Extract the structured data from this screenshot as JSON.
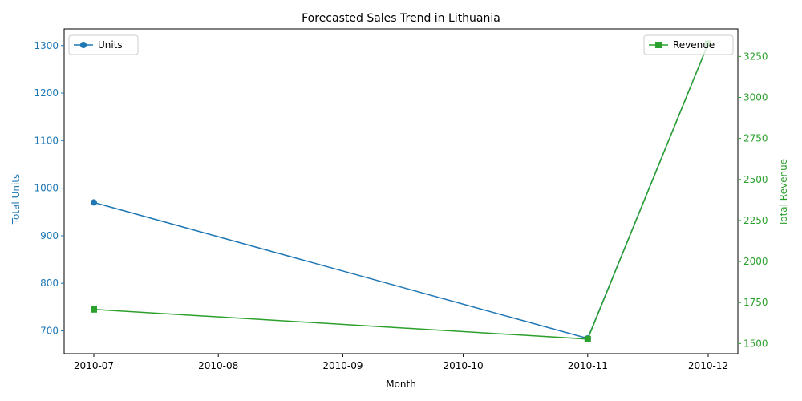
{
  "chart_data": {
    "type": "line",
    "title": "Forecasted Sales Trend in Lithuania",
    "xlabel": "Month",
    "x_ticks": [
      "2010-07",
      "2010-08",
      "2010-09",
      "2010-10",
      "2010-11",
      "2010-12"
    ],
    "x_domain": [
      "2010-07-01",
      "2010-12-01"
    ],
    "y_left": {
      "label": "Total Units",
      "color": "#1f77b4",
      "ylim": [
        652,
        1335
      ],
      "ticks": [
        700,
        800,
        900,
        1000,
        1100,
        1200,
        1300
      ]
    },
    "y_right": {
      "label": "Total Revenue",
      "color": "#2ca02c",
      "ylim": [
        1438,
        3418
      ],
      "ticks": [
        1500,
        1750,
        2000,
        2250,
        2500,
        2750,
        3000,
        3250
      ]
    },
    "series": [
      {
        "name": "Units",
        "axis": "left",
        "color": "#1f77b4",
        "marker": "circle",
        "x": [
          "2010-07-01",
          "2010-11-01",
          "2010-12-01"
        ],
        "values": [
          970,
          684,
          1304
        ]
      },
      {
        "name": "Revenue",
        "axis": "right",
        "color": "#2ca02c",
        "marker": "square",
        "x": [
          "2010-07-01",
          "2010-11-01",
          "2010-12-01"
        ],
        "values": [
          1708,
          1527,
          3328
        ]
      }
    ],
    "legends": [
      {
        "series": "Units",
        "placement": "upper-left"
      },
      {
        "series": "Revenue",
        "placement": "upper-right"
      }
    ],
    "grid": false
  }
}
